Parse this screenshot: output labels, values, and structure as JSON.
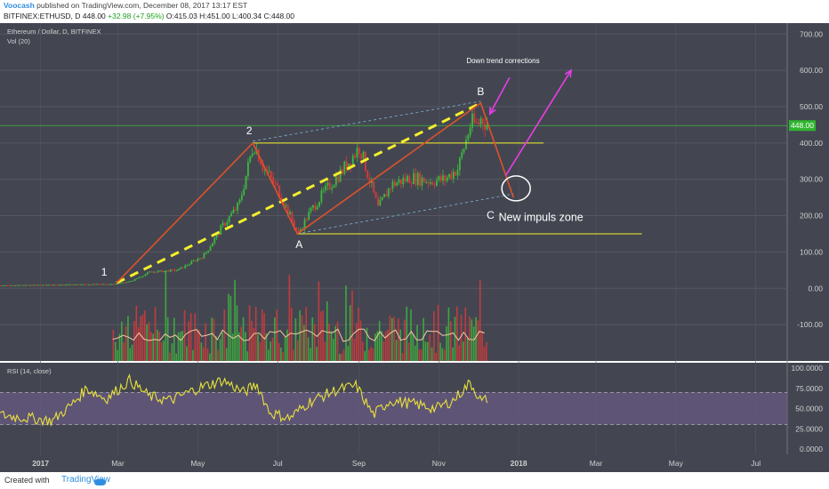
{
  "header": {
    "author": "Voocash",
    "published_text": "published on TradingView.com, December 08, 2017 13:17 EST",
    "symbol_line_prefix": "BITFINEX:ETHUSD, D 448.00 ",
    "change_text": "+32.98 (+7.95%)",
    "ohlc_text": " O:415.03 H:451.00 L:400.34 C:448.00"
  },
  "footer": {
    "created_with": "Created with",
    "brand": "TradingView"
  },
  "colors": {
    "pane_bg": "#434651",
    "rsi_band": "#6a5a86",
    "wave": "#e0512a",
    "yellow": "#f4f02c",
    "magenta": "#e93ee6",
    "grid": "#545761",
    "candle_up": "#3cba3c",
    "candle_down": "#d83a3a",
    "axis_text": "#d0d0d0"
  },
  "chart_data": {
    "type": "candlestick",
    "legend_main": "Ethereum / Dollar, D, BITFINEX",
    "legend_vol": "Vol (20)",
    "legend_rsi": "RSI (14, close)",
    "price_axis": {
      "labels": [
        "700.00",
        "600.00",
        "500.00",
        "400.00",
        "300.00",
        "200.00",
        "100.00",
        "0.00",
        "-100.00"
      ],
      "ylim": [
        -200,
        730
      ]
    },
    "rsi_axis": {
      "labels": [
        "100.0000",
        "75.0000",
        "50.0000",
        "25.0000",
        "0.0000"
      ],
      "ylim": [
        0,
        100
      ],
      "upper": 70,
      "lower": 30
    },
    "time_axis": {
      "labels": [
        "2017",
        "Mar",
        "May",
        "Jul",
        "Sep",
        "Nov",
        "2018",
        "Mar",
        "May",
        "Jul"
      ]
    },
    "last_price": {
      "value": 448,
      "label": "448.00"
    },
    "price_points": [
      {
        "date": "2016-12-01",
        "close": 8
      },
      {
        "date": "2017-01-15",
        "close": 10
      },
      {
        "date": "2017-02-25",
        "close": 12
      },
      {
        "date": "2017-03-10",
        "close": 19
      },
      {
        "date": "2017-03-25",
        "close": 45
      },
      {
        "date": "2017-04-15",
        "close": 50
      },
      {
        "date": "2017-05-05",
        "close": 90
      },
      {
        "date": "2017-05-20",
        "close": 175
      },
      {
        "date": "2017-06-01",
        "close": 230
      },
      {
        "date": "2017-06-12",
        "close": 400
      },
      {
        "date": "2017-06-20",
        "close": 330
      },
      {
        "date": "2017-07-01",
        "close": 270
      },
      {
        "date": "2017-07-16",
        "close": 150
      },
      {
        "date": "2017-07-25",
        "close": 210
      },
      {
        "date": "2017-08-05",
        "close": 265
      },
      {
        "date": "2017-08-20",
        "close": 330
      },
      {
        "date": "2017-09-01",
        "close": 390
      },
      {
        "date": "2017-09-15",
        "close": 220
      },
      {
        "date": "2017-09-25",
        "close": 285
      },
      {
        "date": "2017-10-10",
        "close": 305
      },
      {
        "date": "2017-10-25",
        "close": 295
      },
      {
        "date": "2017-11-05",
        "close": 300
      },
      {
        "date": "2017-11-15",
        "close": 330
      },
      {
        "date": "2017-11-25",
        "close": 455
      },
      {
        "date": "2017-11-30",
        "close": 450
      },
      {
        "date": "2017-12-03",
        "close": 470
      },
      {
        "date": "2017-12-08",
        "close": 448
      }
    ],
    "rsi_points": [
      {
        "date": "2016-12-01",
        "v": 42
      },
      {
        "date": "2017-01-10",
        "v": 35
      },
      {
        "date": "2017-01-25",
        "v": 55
      },
      {
        "date": "2017-02-05",
        "v": 75
      },
      {
        "date": "2017-02-20",
        "v": 62
      },
      {
        "date": "2017-03-10",
        "v": 85
      },
      {
        "date": "2017-03-25",
        "v": 65
      },
      {
        "date": "2017-04-10",
        "v": 60
      },
      {
        "date": "2017-05-01",
        "v": 75
      },
      {
        "date": "2017-05-20",
        "v": 85
      },
      {
        "date": "2017-06-05",
        "v": 70
      },
      {
        "date": "2017-06-15",
        "v": 80
      },
      {
        "date": "2017-06-25",
        "v": 45
      },
      {
        "date": "2017-07-10",
        "v": 38
      },
      {
        "date": "2017-07-25",
        "v": 58
      },
      {
        "date": "2017-08-15",
        "v": 73
      },
      {
        "date": "2017-08-30",
        "v": 78
      },
      {
        "date": "2017-09-12",
        "v": 42
      },
      {
        "date": "2017-09-25",
        "v": 60
      },
      {
        "date": "2017-10-15",
        "v": 55
      },
      {
        "date": "2017-10-30",
        "v": 50
      },
      {
        "date": "2017-11-12",
        "v": 60
      },
      {
        "date": "2017-11-25",
        "v": 82
      },
      {
        "date": "2017-12-04",
        "v": 58
      },
      {
        "date": "2017-12-08",
        "v": 62
      }
    ],
    "wave_labels": [
      {
        "text": "1",
        "date": "2017-02-28",
        "price": 15
      },
      {
        "text": "2",
        "date": "2017-06-12",
        "price": 400
      },
      {
        "text": "A",
        "date": "2017-07-16",
        "price": 150
      },
      {
        "text": "B",
        "date": "2017-12-03",
        "price": 510
      },
      {
        "text": "C",
        "date": "2017-12-20",
        "price": 250
      }
    ],
    "annotations": [
      {
        "text": "Down trend corrections"
      },
      {
        "text": "New impuls zone"
      }
    ]
  }
}
